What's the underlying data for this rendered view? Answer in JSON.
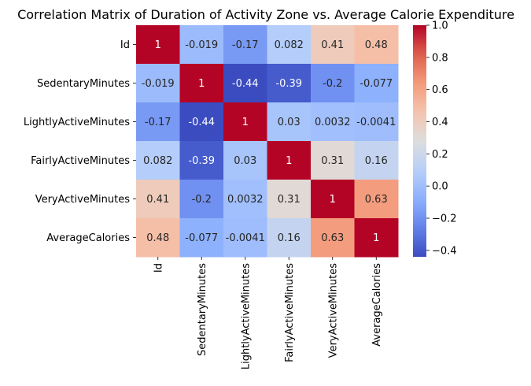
{
  "chart_data": {
    "type": "heatmap",
    "title": "Correlation Matrix of Duration of Activity Zone vs. Average Calorie Expenditure",
    "variables": [
      "Id",
      "SedentaryMinutes",
      "LightlyActiveMinutes",
      "FairlyActiveMinutes",
      "VeryActiveMinutes",
      "AverageCalories"
    ],
    "matrix": [
      [
        1,
        -0.019,
        -0.17,
        0.082,
        0.41,
        0.48
      ],
      [
        -0.019,
        1,
        -0.44,
        -0.39,
        -0.2,
        -0.077
      ],
      [
        -0.17,
        -0.44,
        1,
        0.03,
        0.0032,
        -0.0041
      ],
      [
        0.082,
        -0.39,
        0.03,
        1,
        0.31,
        0.16
      ],
      [
        0.41,
        -0.2,
        0.0032,
        0.31,
        1,
        0.63
      ],
      [
        0.48,
        -0.077,
        -0.0041,
        0.16,
        0.63,
        1
      ]
    ],
    "cell_labels": [
      [
        "1",
        "-0.019",
        "-0.17",
        "0.082",
        "0.41",
        "0.48"
      ],
      [
        "-0.019",
        "1",
        "-0.44",
        "-0.39",
        "-0.2",
        "-0.077"
      ],
      [
        "-0.17",
        "-0.44",
        "1",
        "0.03",
        "0.0032",
        "-0.0041"
      ],
      [
        "0.082",
        "-0.39",
        "0.03",
        "1",
        "0.31",
        "0.16"
      ],
      [
        "0.41",
        "-0.2",
        "0.0032",
        "0.31",
        "1",
        "0.63"
      ],
      [
        "0.48",
        "-0.077",
        "-0.0041",
        "0.16",
        "0.63",
        "1"
      ]
    ],
    "colormap": "coolwarm",
    "colorbar": {
      "min": -0.44,
      "max": 1.0,
      "ticks": [
        -0.4,
        -0.2,
        0.0,
        0.2,
        0.4,
        0.6,
        0.8,
        1.0
      ],
      "tick_labels": [
        "−0.4",
        "−0.2",
        "0.0",
        "0.2",
        "0.4",
        "0.6",
        "0.8",
        "1.0"
      ]
    }
  }
}
